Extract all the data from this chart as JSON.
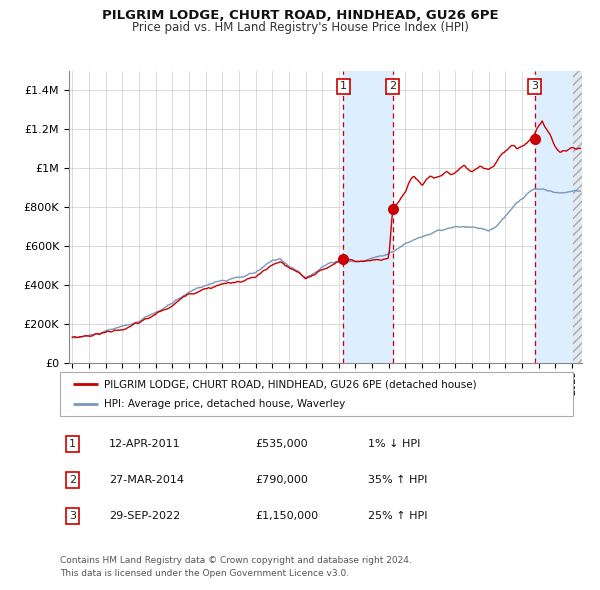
{
  "title": "PILGRIM LODGE, CHURT ROAD, HINDHEAD, GU26 6PE",
  "subtitle": "Price paid vs. HM Land Registry's House Price Index (HPI)",
  "legend_red": "PILGRIM LODGE, CHURT ROAD, HINDHEAD, GU26 6PE (detached house)",
  "legend_blue": "HPI: Average price, detached house, Waverley",
  "footer_line1": "Contains HM Land Registry data © Crown copyright and database right 2024.",
  "footer_line2": "This data is licensed under the Open Government Licence v3.0.",
  "transactions": [
    {
      "num": 1,
      "date": "12-APR-2011",
      "price": "£535,000",
      "hpi_change": "1% ↓ HPI",
      "date_val": 2011.28,
      "price_val": 535000
    },
    {
      "num": 2,
      "date": "27-MAR-2014",
      "price": "£790,000",
      "hpi_change": "35% ↑ HPI",
      "date_val": 2014.24,
      "price_val": 790000
    },
    {
      "num": 3,
      "date": "29-SEP-2022",
      "price": "£1,150,000",
      "hpi_change": "25% ↑ HPI",
      "date_val": 2022.75,
      "price_val": 1150000
    }
  ],
  "red_line_color": "#cc0000",
  "blue_line_color": "#7799bb",
  "dot_color": "#cc0000",
  "shade_color": "#ddeeff",
  "vline_color": "#cc0000",
  "grid_color": "#cccccc",
  "background_color": "#ffffff",
  "ylim": [
    0,
    1500000
  ],
  "xlim_start": 1994.8,
  "xlim_end": 2025.6,
  "yticks": [
    0,
    200000,
    400000,
    600000,
    800000,
    1000000,
    1200000,
    1400000
  ],
  "ytick_labels": [
    "£0",
    "£200K",
    "£400K",
    "£600K",
    "£800K",
    "£1M",
    "£1.2M",
    "£1.4M"
  ],
  "xticks": [
    1995,
    1996,
    1997,
    1998,
    1999,
    2000,
    2001,
    2002,
    2003,
    2004,
    2005,
    2006,
    2007,
    2008,
    2009,
    2010,
    2011,
    2012,
    2013,
    2014,
    2015,
    2016,
    2017,
    2018,
    2019,
    2020,
    2021,
    2022,
    2023,
    2024,
    2025
  ]
}
